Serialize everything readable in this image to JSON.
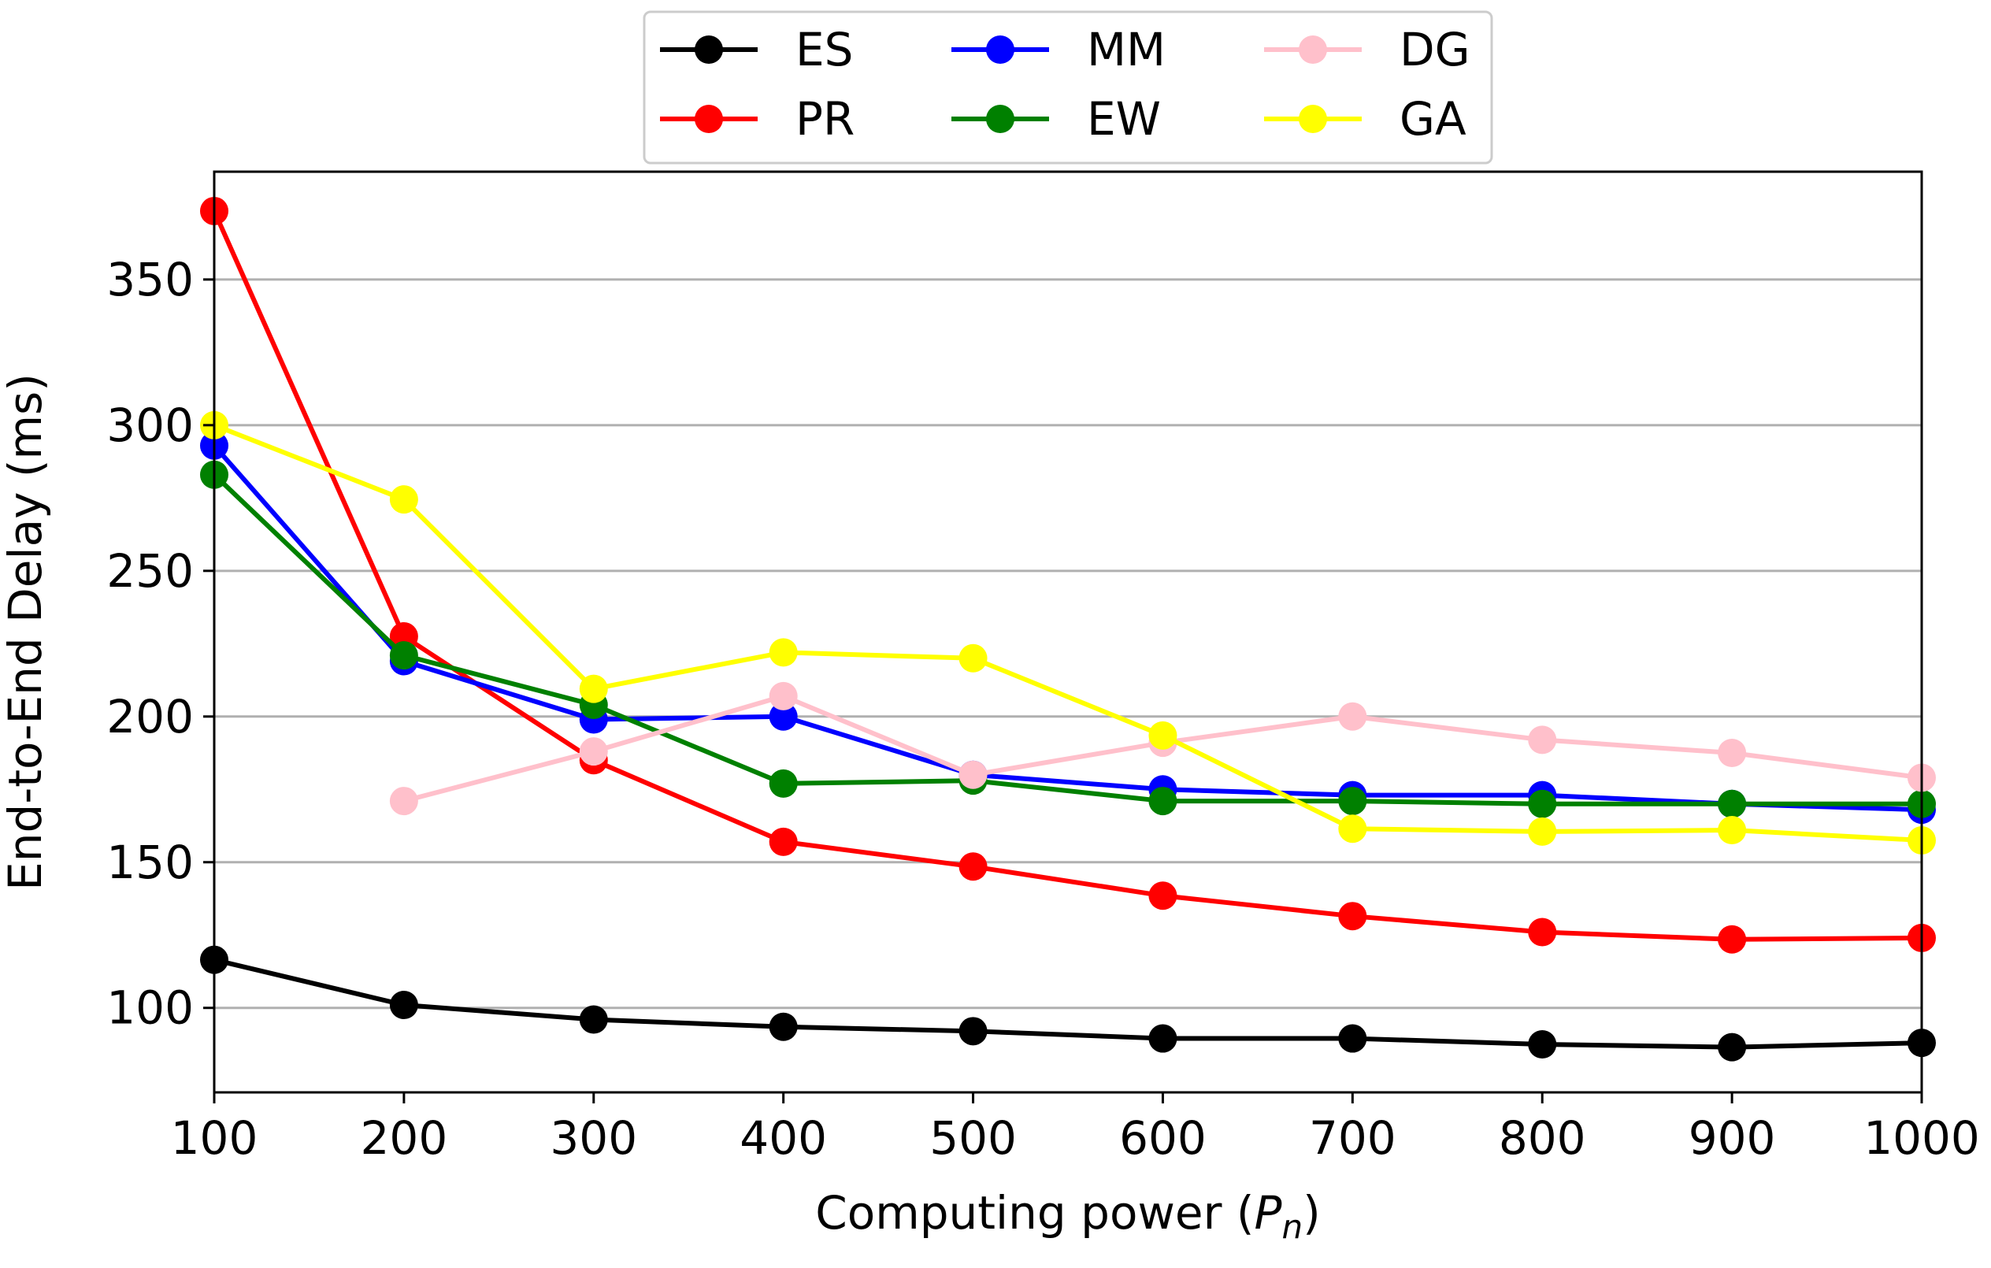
{
  "chart_data": {
    "type": "line",
    "title": "",
    "xlabel": "Computing power (",
    "xlabel_symbol": "P",
    "xlabel_subscript": "n",
    "xlabel_close": ")",
    "ylabel": "End-to-End Delay (ms)",
    "x": [
      100,
      200,
      300,
      400,
      500,
      600,
      700,
      800,
      900,
      1000
    ],
    "xlim": [
      100,
      1000
    ],
    "ylim": [
      71,
      387
    ],
    "xticks": [
      "100",
      "200",
      "300",
      "400",
      "500",
      "600",
      "700",
      "800",
      "900",
      "1000"
    ],
    "yticks": [
      "100",
      "150",
      "200",
      "250",
      "300",
      "350"
    ],
    "ytick_values": [
      100,
      150,
      200,
      250,
      300,
      350
    ],
    "grid": "horizontal",
    "legend_position": "top-center",
    "series": [
      {
        "name": "ES",
        "color": "#000000",
        "values": [
          116.5,
          101,
          96,
          93.5,
          92,
          89.5,
          89.5,
          87.5,
          86.5,
          88
        ]
      },
      {
        "name": "PR",
        "color": "#ff0000",
        "values": [
          373.5,
          227.5,
          185,
          157,
          148.5,
          138.5,
          131.5,
          126,
          123.5,
          124
        ]
      },
      {
        "name": "MM",
        "color": "#0000ff",
        "values": [
          293,
          219,
          199,
          200,
          180,
          175,
          173,
          173,
          170,
          168
        ]
      },
      {
        "name": "EW",
        "color": "#008000",
        "values": [
          283,
          221,
          204,
          177,
          178,
          171,
          171,
          170,
          170,
          170
        ]
      },
      {
        "name": "DG",
        "color": "#ffc0cb",
        "values": [
          null,
          171,
          188,
          207,
          180,
          191,
          200,
          192,
          187.5,
          179
        ]
      },
      {
        "name": "GA",
        "color": "#ffff00",
        "values": [
          300,
          274.5,
          209.5,
          222,
          220,
          193.5,
          161.5,
          160.5,
          161,
          157.5
        ]
      }
    ]
  }
}
